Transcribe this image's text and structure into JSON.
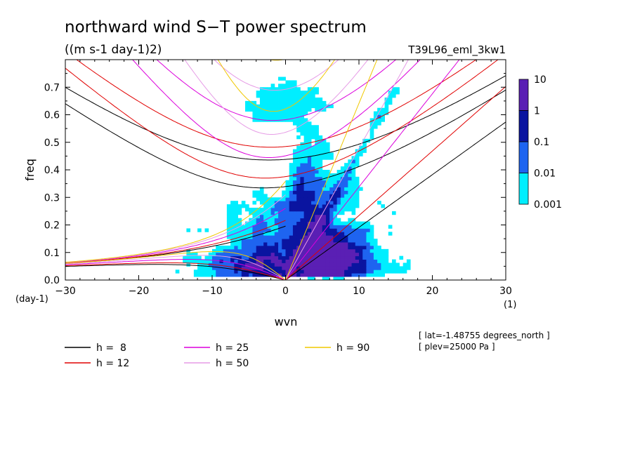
{
  "chart_data": {
    "type": "heatmap",
    "title": "northward wind S−T power spectrum",
    "subtitle": "((m s-1 day-1)2)",
    "run_label": "T39L96_eml_3kw1",
    "xlabel": "wvn",
    "ylabel": "freq",
    "x_unit": "(1)",
    "y_unit": "(day-1)",
    "xlim": [
      -30,
      30
    ],
    "ylim": [
      0,
      0.8
    ],
    "x_ticks": [
      -30,
      -20,
      -10,
      0,
      10,
      20,
      30
    ],
    "x_tick_labels": [
      "−30",
      "−20",
      "−10",
      "0",
      "10",
      "20",
      "30"
    ],
    "y_ticks": [
      0,
      0.1,
      0.2,
      0.3,
      0.4,
      0.5,
      0.6,
      0.7
    ],
    "y_tick_labels": [
      "0.0",
      "0.1",
      "0.2",
      "0.3",
      "0.4",
      "0.5",
      "0.6",
      "0.7"
    ],
    "colorbar": {
      "levels": [
        "10",
        "1",
        "0.1",
        "0.01",
        "0.001"
      ],
      "colors": [
        "#5a1fb4",
        "#0a14a0",
        "#1e64f0",
        "#00eeff"
      ]
    },
    "dispersion_curves": [
      {
        "label": "h =  8",
        "h": 8,
        "color": "#000000"
      },
      {
        "label": "h = 12",
        "h": 12,
        "color": "#e10000"
      },
      {
        "label": "h = 25",
        "h": 25,
        "color": "#dc00dc"
      },
      {
        "label": "h = 50",
        "h": 50,
        "color": "#e69be6"
      },
      {
        "label": "h = 90",
        "h": 90,
        "color": "#f0c800"
      }
    ],
    "annotations": [
      "[ lat=-1.48755 degrees_north ]",
      "[ plev=25000 Pa ]"
    ]
  }
}
